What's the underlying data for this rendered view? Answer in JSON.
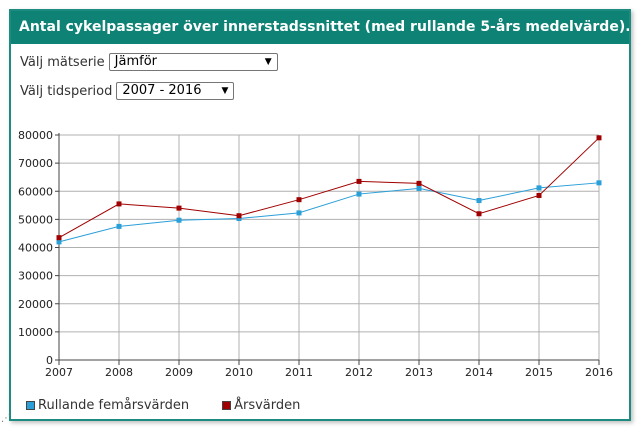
{
  "title": "Antal cykelpassager över innerstadssnittet (med rullande 5-års medelvärde).",
  "controls": {
    "series_label": "Välj mätserie",
    "series_value": "Jämför",
    "period_label": "Välj tidsperiod",
    "period_value": "2007 - 2016",
    "dropdown_arrow": "▼"
  },
  "colors": {
    "header": "#0d8275",
    "rolling": "#2a9fd8",
    "yearly": "#a00000",
    "grid": "#b0b0b0"
  },
  "chart_data": {
    "type": "line",
    "x": [
      "2007",
      "2008",
      "2009",
      "2010",
      "2011",
      "2012",
      "2013",
      "2014",
      "2015",
      "2016"
    ],
    "series": [
      {
        "name": "Rullande femårsvärden",
        "values": [
          42000,
          47500,
          49700,
          50300,
          52300,
          59000,
          61000,
          56700,
          61200,
          63000
        ]
      },
      {
        "name": "Årsvärden",
        "values": [
          43500,
          55500,
          54000,
          51300,
          57000,
          63500,
          62800,
          52000,
          58500,
          79000
        ]
      }
    ],
    "yticks": [
      "0",
      "10000",
      "20000",
      "30000",
      "40000",
      "50000",
      "60000",
      "70000",
      "80000"
    ],
    "ylim": [
      0,
      80000
    ],
    "grid": true,
    "legend_position": "bottom-left"
  }
}
